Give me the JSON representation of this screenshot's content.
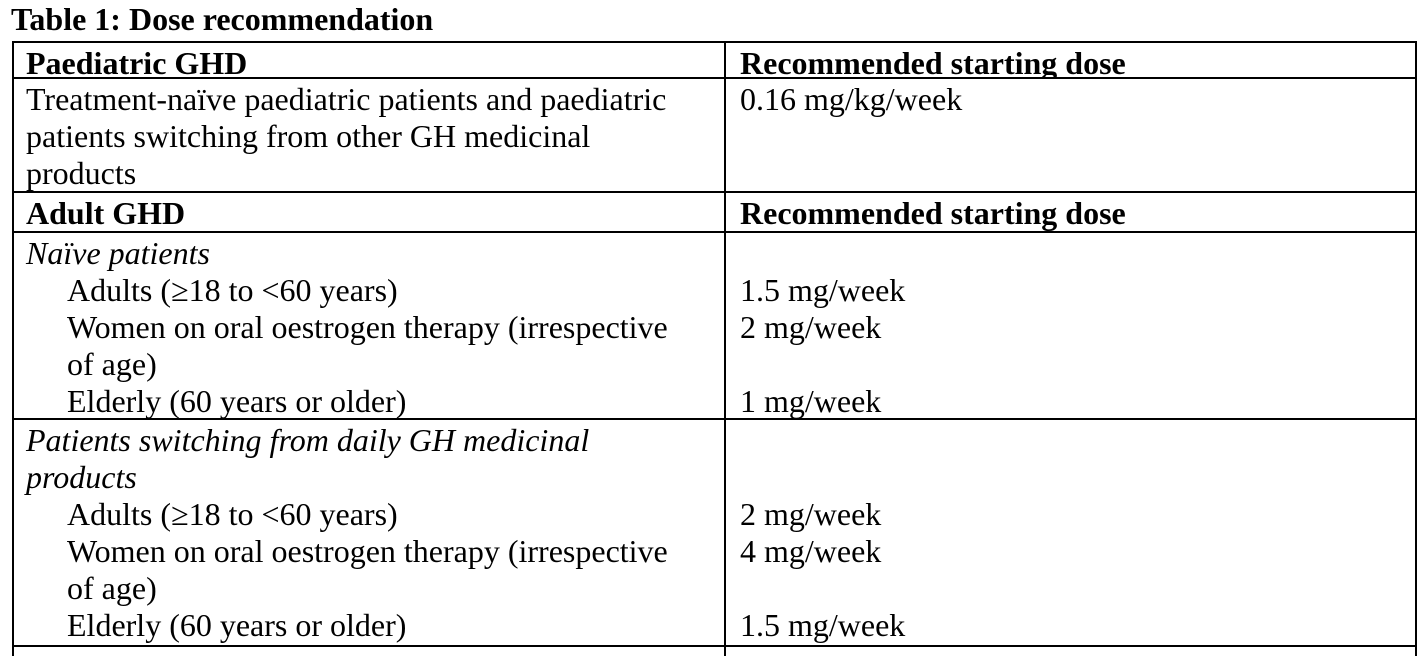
{
  "title": "Table 1: Dose recommendation",
  "colors": {
    "text": "#000000",
    "background": "#ffffff",
    "border": "#000000"
  },
  "table": {
    "rows": [
      {
        "type": "header",
        "left": "Paediatric GHD",
        "right": "Recommended starting dose"
      },
      {
        "type": "body",
        "left_lines": [
          {
            "text": "Treatment-naïve paediatric patients and paediatric"
          },
          {
            "text": "patients switching from other GH medicinal"
          },
          {
            "text": "products"
          }
        ],
        "right_lines": [
          "0.16 mg/kg/week"
        ]
      },
      {
        "type": "header",
        "left": "Adult GHD",
        "right": "Recommended starting dose"
      },
      {
        "type": "body",
        "left_lines": [
          {
            "text": "Naïve patients",
            "style": "italic"
          },
          {
            "text": "Adults (≥18 to <60 years)",
            "indent": true
          },
          {
            "text": "Women on oral oestrogen therapy (irrespective",
            "indent": true
          },
          {
            "text": "of age)",
            "indent": true
          },
          {
            "text": "Elderly (60 years or older)",
            "indent": true
          }
        ],
        "right_lines": [
          "",
          "1.5 mg/week",
          "2 mg/week",
          "",
          "1 mg/week"
        ]
      },
      {
        "type": "body",
        "left_lines": [
          {
            "text": "Patients switching from daily GH medicinal",
            "style": "italic"
          },
          {
            "text": "products",
            "style": "italic"
          },
          {
            "text": "Adults (≥18 to <60 years)",
            "indent": true
          },
          {
            "text": "Women on oral oestrogen therapy (irrespective",
            "indent": true
          },
          {
            "text": "of age)",
            "indent": true
          },
          {
            "text": "Elderly (60 years or older)",
            "indent": true
          }
        ],
        "right_lines": [
          "",
          "",
          "2 mg/week",
          "4 mg/week",
          "",
          "1.5 mg/week"
        ]
      }
    ]
  }
}
